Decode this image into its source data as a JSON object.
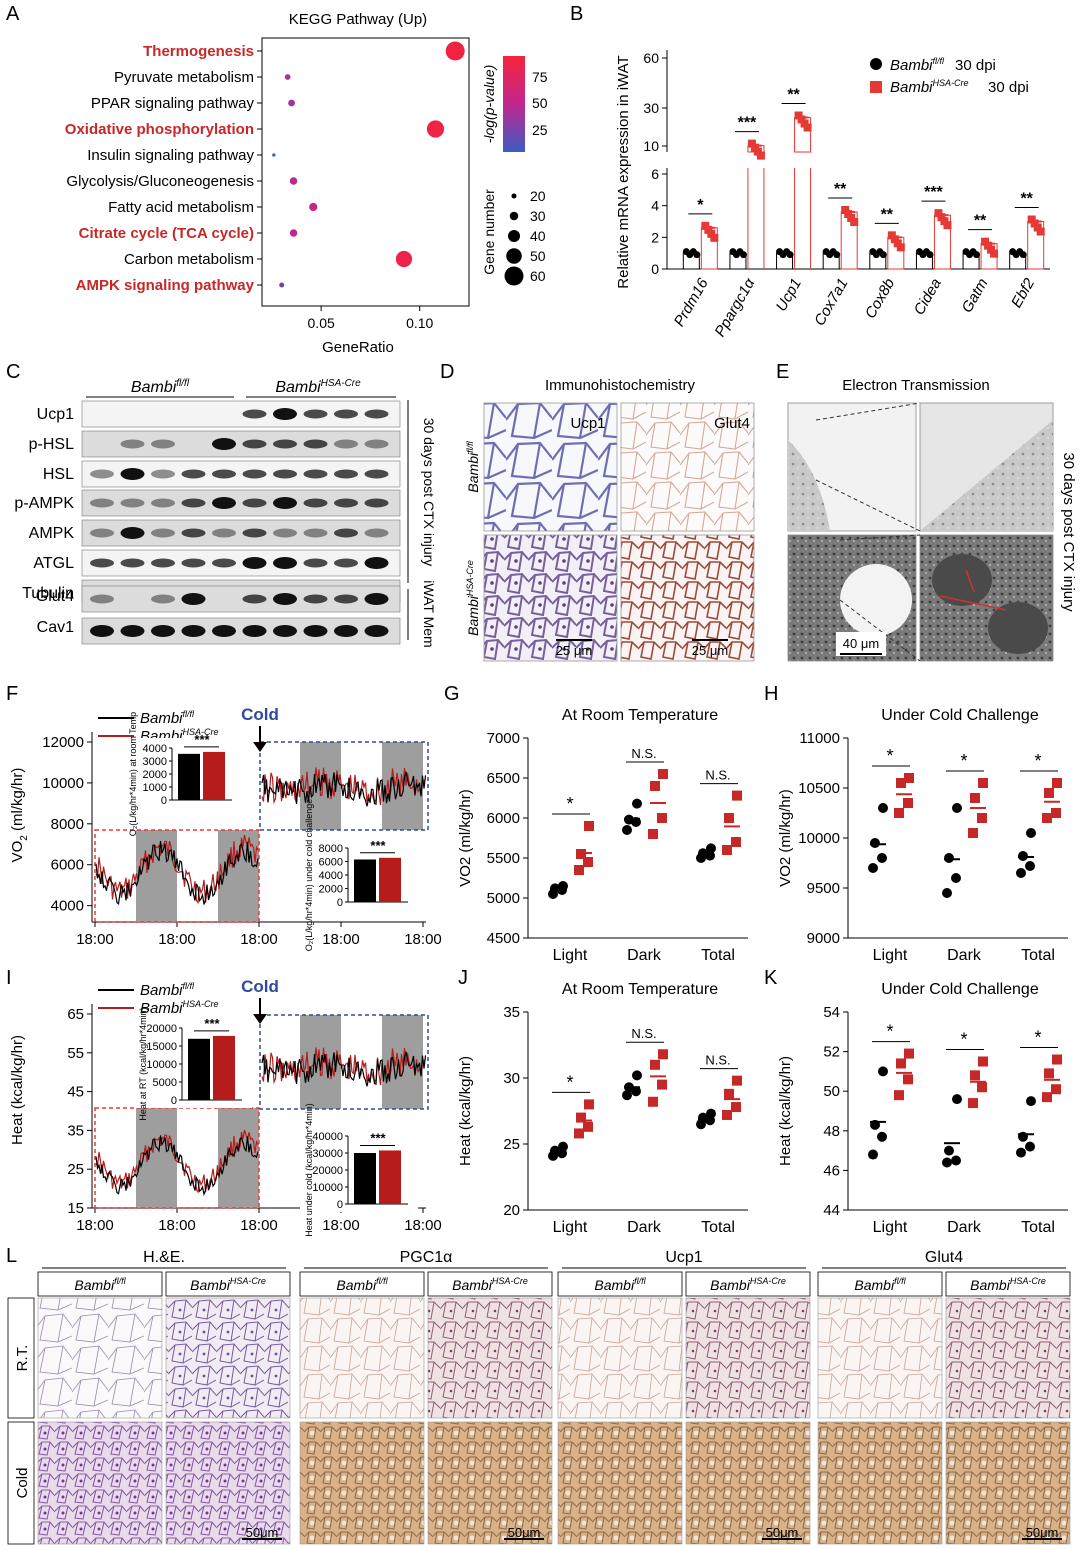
{
  "panels": {
    "A": "A",
    "B": "B",
    "C": "C",
    "D": "D",
    "E": "E",
    "F": "F",
    "G": "G",
    "H": "H",
    "I": "I",
    "J": "J",
    "K": "K",
    "L": "L"
  },
  "colors": {
    "ctrl": "#000000",
    "ko": "#e53935",
    "koDark": "#b71c1c",
    "highlight": "#c62828",
    "dashBlue": "#2e4a9e"
  },
  "geno": {
    "ctrl_base": "Bambi",
    "ctrl_sup": "fl/fl",
    "ko_base": "Bambi",
    "ko_sup": "HSA-Cre",
    "dpi": "30 dpi"
  },
  "panelA": {
    "chart_data": {
      "type": "scatter",
      "title": "KEGG Pathway (Up)",
      "xlabel": "GeneRatio",
      "xticks": [
        "0.05",
        "0.10"
      ],
      "colorbar_label": "-log(p-value)",
      "colorbar_ticks": [
        "75",
        "50",
        "25"
      ],
      "size_legend_title": "Gene number",
      "size_legend": [
        "20",
        "30",
        "40",
        "50",
        "60"
      ],
      "pathways": [
        {
          "name": "Thermogenesis",
          "ratio": 0.118,
          "genes": 60,
          "logp": 82,
          "highlight": true
        },
        {
          "name": "Pyruvate metabolism",
          "ratio": 0.033,
          "genes": 22,
          "logp": 40,
          "highlight": false
        },
        {
          "name": "PPAR signaling pathway",
          "ratio": 0.035,
          "genes": 25,
          "logp": 38,
          "highlight": false
        },
        {
          "name": "Oxidative phosphorylation",
          "ratio": 0.108,
          "genes": 55,
          "logp": 80,
          "highlight": true
        },
        {
          "name": "Insulin signaling pathway",
          "ratio": 0.026,
          "genes": 15,
          "logp": 12,
          "highlight": false
        },
        {
          "name": "Glycolysis/Gluconeogenesis",
          "ratio": 0.036,
          "genes": 27,
          "logp": 45,
          "highlight": false
        },
        {
          "name": "Fatty acid metabolism",
          "ratio": 0.046,
          "genes": 29,
          "logp": 50,
          "highlight": false
        },
        {
          "name": "Citrate cycle (TCA cycle)",
          "ratio": 0.036,
          "genes": 27,
          "logp": 48,
          "highlight": true
        },
        {
          "name": "Carbon metabolism",
          "ratio": 0.092,
          "genes": 52,
          "logp": 78,
          "highlight": false
        },
        {
          "name": "AMPK signaling pathway",
          "ratio": 0.03,
          "genes": 20,
          "logp": 25,
          "highlight": true
        }
      ]
    }
  },
  "panelB": {
    "chart_data": {
      "type": "bar",
      "ylabel": "Relative mRNA expression in iWAT",
      "yticks_top": [
        "60",
        "30",
        "10"
      ],
      "yticks_bottom": [
        "6",
        "4",
        "2",
        "0"
      ],
      "categories": [
        "Prdm16",
        "Ppargc1α",
        "Ucp1",
        "Cox7a1",
        "Cox8b",
        "Cidea",
        "Gatm",
        "Ebf2"
      ],
      "series": [
        {
          "name": "Bambi fl/fl 30 dpi",
          "values": [
            1,
            1,
            1,
            1,
            1,
            1,
            1,
            1
          ]
        },
        {
          "name": "Bambi HSA-Cre 30 dpi",
          "values": [
            2.6,
            10.2,
            25,
            3.6,
            2.0,
            3.4,
            1.6,
            3.0
          ]
        }
      ],
      "significance": [
        "*",
        "***",
        "**",
        "**",
        "**",
        "***",
        "**",
        "**"
      ]
    }
  },
  "panelC": {
    "lanes_per_group": 5,
    "right_label": "30 days post CTX injury",
    "mem_label": "iWAT Mem",
    "blots": [
      "Ucp1",
      "p-HSL",
      "HSL",
      "p-AMPK",
      "AMPK",
      "ATGL",
      "Tubulin",
      "Glut4",
      "Cav1"
    ]
  },
  "panelD": {
    "title": "Immunohistochemistry",
    "cols": [
      "Ucp1",
      "Glut4"
    ],
    "scale": "25 μm"
  },
  "panelE": {
    "title": "Electron Transmission",
    "scale": "40 μm",
    "right_label": "30 days post CTX injury"
  },
  "panelF": {
    "ylabel": "VO",
    "ylabel_sub": "2",
    "yunit": " (ml/kg/hr)",
    "yticks": [
      "12000",
      "10000",
      "8000",
      "6000",
      "4000"
    ],
    "xticks": [
      "18:00",
      "18:00",
      "18:00",
      "18:00",
      "18:00"
    ],
    "cold": "Cold",
    "inset1": {
      "ylabel": "O₂(L/kg/hr*4min) at room Temp",
      "yticks": [
        "4000",
        "3000",
        "2000",
        "1000",
        "0"
      ],
      "values": [
        3550,
        3700
      ],
      "sig": "***"
    },
    "inset2": {
      "ylabel": "O₂(L/kg/hr*4min) under cold challenge",
      "yticks": [
        "8000",
        "6000",
        "4000",
        "2000",
        "0"
      ],
      "values": [
        6300,
        6550
      ],
      "sig": "***"
    }
  },
  "panelG": {
    "chart_data": {
      "type": "scatter",
      "title": "At Room Temperature",
      "ylabel": "VO2 (ml/kg/hr)",
      "yticks": [
        "7000",
        "6500",
        "6000",
        "5500",
        "5000",
        "4500"
      ],
      "ylim": [
        4500,
        7000
      ],
      "categories": [
        "Light",
        "Dark",
        "Total"
      ],
      "sig": [
        "*",
        "N.S.",
        "N.S."
      ],
      "ctrl": [
        [
          5050,
          5100,
          5120,
          5150
        ],
        [
          5850,
          5950,
          5980,
          6180
        ],
        [
          5500,
          5530,
          5560,
          5620
        ]
      ],
      "ko": [
        [
          5350,
          5450,
          5550,
          5900
        ],
        [
          5800,
          6000,
          6400,
          6550
        ],
        [
          5600,
          5700,
          6000,
          6280
        ]
      ]
    }
  },
  "panelH": {
    "chart_data": {
      "type": "scatter",
      "title": "Under Cold Challenge",
      "ylabel": "VO2 (ml/kg/hr)",
      "yticks": [
        "11000",
        "10500",
        "10000",
        "9500",
        "9000"
      ],
      "ylim": [
        9000,
        11000
      ],
      "categories": [
        "Light",
        "Dark",
        "Total"
      ],
      "sig": [
        "*",
        "*",
        "*"
      ],
      "ctrl": [
        [
          9700,
          9800,
          9950,
          10300
        ],
        [
          9450,
          9600,
          9800,
          10300
        ],
        [
          9650,
          9720,
          9820,
          10050
        ]
      ],
      "ko": [
        [
          10250,
          10350,
          10550,
          10600
        ],
        [
          10050,
          10200,
          10400,
          10550
        ],
        [
          10200,
          10250,
          10450,
          10550
        ]
      ]
    }
  },
  "panelI": {
    "ylabel": "Heat (kcal/kg/hr)",
    "yticks": [
      "65",
      "55",
      "45",
      "35",
      "25",
      "15"
    ],
    "xticks": [
      "18:00",
      "18:00",
      "18:00",
      "18:00",
      "18:00"
    ],
    "cold": "Cold",
    "inset1": {
      "ylabel": "Heat at RT (kcal/kg/hr*4min)",
      "yticks": [
        "20000",
        "15000",
        "10000",
        "5000",
        "0"
      ],
      "values": [
        17000,
        17800
      ],
      "sig": "***"
    },
    "inset2": {
      "ylabel": "Heat under cold (kcal/kg/hr*4min)",
      "yticks": [
        "40000",
        "30000",
        "20000",
        "10000",
        "0"
      ],
      "values": [
        30000,
        31500
      ],
      "sig": "***"
    }
  },
  "panelJ": {
    "chart_data": {
      "type": "scatter",
      "title": "At Room Temperature",
      "ylabel": "Heat (kcal/kg/hr)",
      "yticks": [
        "35",
        "30",
        "25",
        "20"
      ],
      "ylim": [
        20,
        35
      ],
      "categories": [
        "Light",
        "Dark",
        "Total"
      ],
      "sig": [
        "*",
        "N.S.",
        "N.S."
      ],
      "ctrl": [
        [
          24.1,
          24.3,
          24.5,
          24.8
        ],
        [
          28.7,
          29.0,
          29.3,
          30.2
        ],
        [
          26.5,
          26.8,
          27.0,
          27.3
        ]
      ],
      "ko": [
        [
          25.8,
          26.3,
          27.0,
          28.0
        ],
        [
          28.2,
          29.5,
          31.0,
          31.8
        ],
        [
          27.2,
          27.8,
          28.8,
          29.8
        ]
      ]
    }
  },
  "panelK": {
    "chart_data": {
      "type": "scatter",
      "title": "Under Cold Challenge",
      "ylabel": "Heat (kcal/kg/hr)",
      "yticks": [
        "54",
        "52",
        "50",
        "48",
        "46",
        "44"
      ],
      "ylim": [
        44,
        54
      ],
      "categories": [
        "Light",
        "Dark",
        "Total"
      ],
      "sig": [
        "*",
        "*",
        "*"
      ],
      "ctrl": [
        [
          46.8,
          47.7,
          48.3,
          51.0
        ],
        [
          46.4,
          46.5,
          47.0,
          49.6
        ],
        [
          46.9,
          47.2,
          47.7,
          49.5
        ]
      ],
      "ko": [
        [
          49.8,
          50.6,
          51.4,
          51.9
        ],
        [
          49.4,
          50.2,
          50.8,
          51.5
        ],
        [
          49.7,
          50.1,
          50.9,
          51.6
        ]
      ]
    }
  },
  "panelL": {
    "groups": [
      "H.&E.",
      "PGC1α",
      "Ucp1",
      "Glut4"
    ],
    "rows": [
      "R.T.",
      "Cold"
    ],
    "scale": "50μm"
  }
}
